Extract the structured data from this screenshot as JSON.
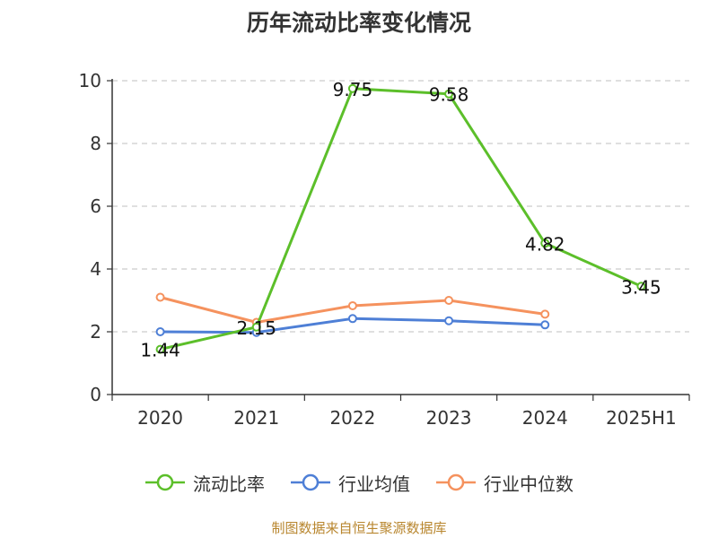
{
  "chart_data": {
    "type": "line",
    "title": "历年流动比率变化情况",
    "categories": [
      "2020",
      "2021",
      "2022",
      "2023",
      "2024",
      "2025H1"
    ],
    "ylim": [
      0,
      10
    ],
    "yticks": [
      0,
      2,
      4,
      6,
      8,
      10
    ],
    "grid": true,
    "legend_position": "bottom",
    "series": [
      {
        "name": "流动比率",
        "color": "#5cbf2a",
        "values": [
          1.44,
          2.15,
          9.75,
          9.58,
          4.82,
          3.45
        ],
        "labels": [
          "1.44",
          "2.15",
          "9.75",
          "9.58",
          "4.82",
          "3.45"
        ]
      },
      {
        "name": "行业均值",
        "color": "#4e7fd6",
        "values": [
          2.0,
          1.98,
          2.42,
          2.35,
          2.22,
          null
        ]
      },
      {
        "name": "行业中位数",
        "color": "#f5925e",
        "values": [
          3.1,
          2.3,
          2.83,
          3.0,
          2.56,
          null
        ]
      }
    ]
  },
  "footer": "制图数据来自恒生聚源数据库"
}
